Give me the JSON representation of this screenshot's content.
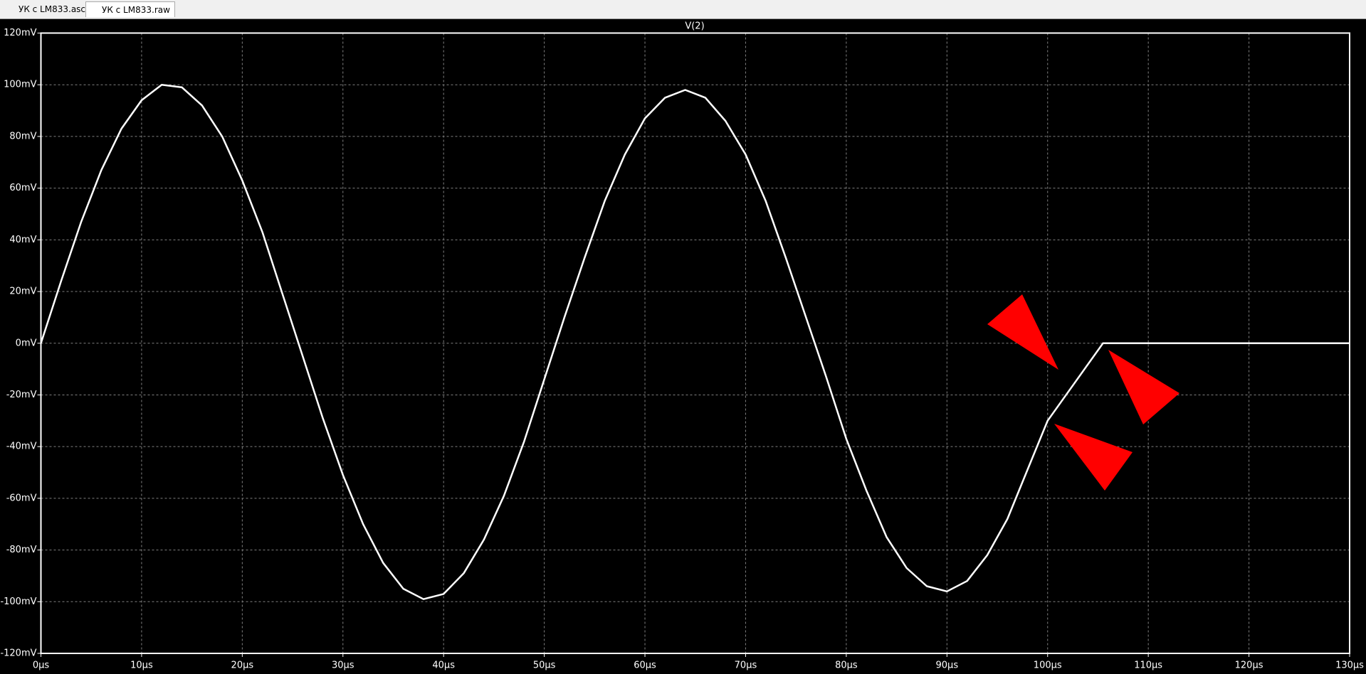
{
  "tabs": [
    "УК с LM833.asc",
    "УК с LM833.raw"
  ],
  "chart_data": {
    "type": "line",
    "title": "V(2)",
    "color": "#ffffff",
    "grid": true,
    "x": [
      0,
      2,
      4,
      6,
      8,
      10,
      12,
      14,
      16,
      18,
      20,
      22,
      24,
      26,
      28,
      30,
      32,
      34,
      36,
      38,
      40,
      42,
      44,
      46,
      48,
      50,
      52,
      54,
      56,
      58,
      60,
      62,
      64,
      66,
      68,
      70,
      72,
      74,
      76,
      78,
      80,
      82,
      84,
      86,
      88,
      90,
      92,
      94,
      96,
      98,
      100,
      105.5,
      130
    ],
    "values": [
      0,
      24,
      47,
      67,
      83,
      94,
      100,
      99,
      92,
      80,
      63,
      43,
      19,
      -5,
      -29,
      -51,
      -70,
      -85,
      -95,
      -99,
      -97,
      -89,
      -76,
      -59,
      -38,
      -14,
      10,
      33,
      55,
      73,
      87,
      95,
      98,
      95,
      86,
      73,
      55,
      33,
      10,
      -13,
      -37,
      -57,
      -75,
      -87,
      -94,
      -96,
      -92,
      -82,
      -68,
      -49,
      -30,
      0,
      0
    ],
    "xlim": [
      0,
      130
    ],
    "xticks": [
      {
        "value": 0,
        "label": "0µs"
      },
      {
        "value": 10,
        "label": "10µs"
      },
      {
        "value": 20,
        "label": "20µs"
      },
      {
        "value": 30,
        "label": "30µs"
      },
      {
        "value": 40,
        "label": "40µs"
      },
      {
        "value": 50,
        "label": "50µs"
      },
      {
        "value": 60,
        "label": "60µs"
      },
      {
        "value": 70,
        "label": "70µs"
      },
      {
        "value": 80,
        "label": "80µs"
      },
      {
        "value": 90,
        "label": "90µs"
      },
      {
        "value": 100,
        "label": "100µs"
      },
      {
        "value": 110,
        "label": "110µs"
      },
      {
        "value": 120,
        "label": "120µs"
      },
      {
        "value": 130,
        "label": "130µs"
      }
    ],
    "ylim": [
      -120,
      120
    ],
    "yticks": [
      {
        "value": -120,
        "label": "-120mV"
      },
      {
        "value": -100,
        "label": "-100mV"
      },
      {
        "value": -80,
        "label": "-80mV"
      },
      {
        "value": -60,
        "label": "-60mV"
      },
      {
        "value": -40,
        "label": "-40mV"
      },
      {
        "value": -20,
        "label": "-20mV"
      },
      {
        "value": 0,
        "label": "0mV"
      },
      {
        "value": 20,
        "label": "20mV"
      },
      {
        "value": 40,
        "label": "40mV"
      },
      {
        "value": 60,
        "label": "60mV"
      },
      {
        "value": 80,
        "label": "80mV"
      },
      {
        "value": 100,
        "label": "100mV"
      },
      {
        "value": 120,
        "label": "120mV"
      }
    ]
  }
}
